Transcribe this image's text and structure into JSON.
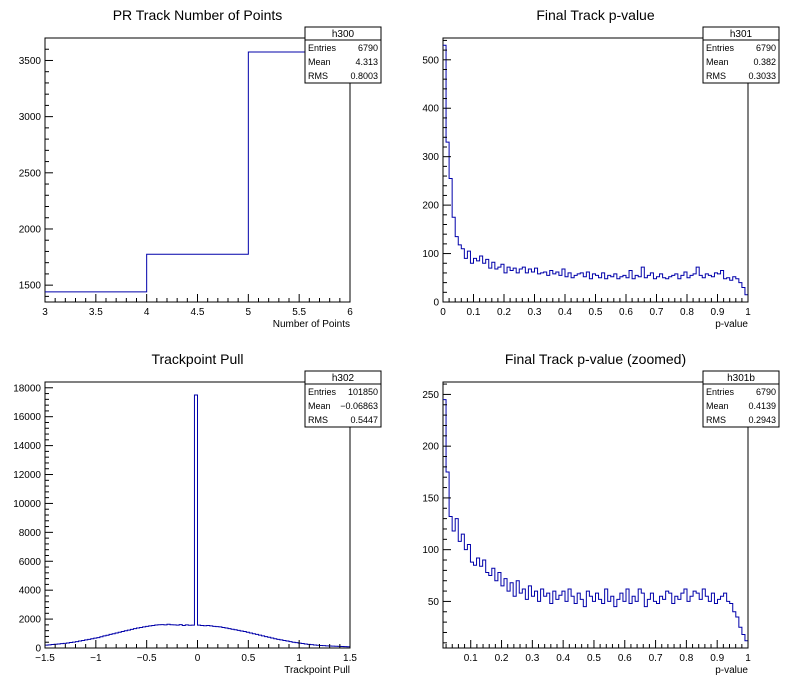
{
  "chart_data": [
    {
      "type": "bar",
      "title": "PR Track Number of Points",
      "xlabel": "Number of Points",
      "ylabel": "",
      "xlim": [
        3,
        6
      ],
      "ylim": [
        1350,
        3700
      ],
      "xticks": [
        3,
        3.5,
        4,
        4.5,
        5,
        5.5,
        6
      ],
      "yticks": [
        1500,
        2000,
        2500,
        3000,
        3500
      ],
      "bin_edges": [
        3,
        4,
        5,
        6
      ],
      "values": [
        1440,
        1775,
        3575
      ],
      "stats": {
        "name": "h300",
        "rows": [
          [
            "Entries",
            "6790"
          ],
          [
            "Mean",
            "4.313"
          ],
          [
            "RMS",
            "0.8003"
          ]
        ]
      }
    },
    {
      "type": "bar",
      "title": "Final Track p-value",
      "xlabel": "p-value",
      "ylabel": "",
      "xlim": [
        0,
        1
      ],
      "ylim": [
        0,
        545
      ],
      "xticks": [
        0,
        0.1,
        0.2,
        0.3,
        0.4,
        0.5,
        0.6,
        0.7,
        0.8,
        0.9,
        1
      ],
      "yticks": [
        0,
        100,
        200,
        300,
        400,
        500
      ],
      "bin_edges_range": [
        0,
        1
      ],
      "values": [
        530,
        330,
        255,
        175,
        135,
        118,
        110,
        90,
        105,
        80,
        90,
        85,
        95,
        80,
        88,
        70,
        82,
        68,
        72,
        78,
        60,
        72,
        65,
        70,
        60,
        68,
        72,
        60,
        68,
        62,
        70,
        58,
        60,
        62,
        55,
        65,
        58,
        62,
        55,
        68,
        52,
        60,
        50,
        55,
        58,
        60,
        52,
        62,
        48,
        58,
        55,
        50,
        60,
        48,
        55,
        52,
        58,
        48,
        52,
        55,
        50,
        65,
        48,
        55,
        52,
        72,
        50,
        55,
        60,
        48,
        52,
        58,
        50,
        48,
        52,
        55,
        58,
        48,
        55,
        62,
        50,
        55,
        58,
        72,
        55,
        50,
        58,
        55,
        52,
        60,
        58,
        65,
        48,
        50,
        45,
        52,
        48,
        40,
        30,
        15
      ],
      "stats": {
        "name": "h301",
        "rows": [
          [
            "Entries",
            "6790"
          ],
          [
            "Mean",
            "0.382"
          ],
          [
            "RMS",
            "0.3033"
          ]
        ]
      }
    },
    {
      "type": "bar",
      "title": "Trackpoint Pull",
      "xlabel": "Trackpoint Pull",
      "ylabel": "",
      "xlim": [
        -1.5,
        1.5
      ],
      "ylim": [
        0,
        18400
      ],
      "xticks": [
        -1.5,
        -1,
        -0.5,
        0,
        0.5,
        1,
        1.5
      ],
      "yticks": [
        0,
        2000,
        4000,
        6000,
        8000,
        10000,
        12000,
        14000,
        16000,
        18000
      ],
      "bin_edges_range": [
        -1.5,
        1.5
      ],
      "values": [
        200,
        220,
        240,
        260,
        280,
        300,
        320,
        350,
        380,
        410,
        440,
        480,
        520,
        560,
        600,
        640,
        680,
        720,
        780,
        840,
        880,
        940,
        990,
        1040,
        1090,
        1140,
        1190,
        1240,
        1290,
        1340,
        1380,
        1420,
        1460,
        1500,
        1530,
        1560,
        1590,
        1610,
        1620,
        1600,
        1640,
        1610,
        1600,
        1580,
        1620,
        1560,
        1600,
        1570,
        1580,
        17500,
        1580,
        1560,
        1540,
        1560,
        1530,
        1500,
        1480,
        1460,
        1420,
        1380,
        1340,
        1300,
        1260,
        1220,
        1180,
        1140,
        1090,
        1040,
        990,
        940,
        890,
        840,
        790,
        740,
        690,
        640,
        600,
        560,
        520,
        480,
        440,
        400,
        370,
        340,
        310,
        280,
        250,
        230,
        210,
        190,
        170,
        160,
        150,
        140,
        130,
        120,
        110,
        100,
        95,
        90
      ],
      "stats": {
        "name": "h302",
        "rows": [
          [
            "Entries",
            "101850"
          ],
          [
            "Mean",
            "−0.06863"
          ],
          [
            "RMS",
            "0.5447"
          ]
        ]
      }
    },
    {
      "type": "bar",
      "title": "Final Track p-value (zoomed)",
      "xlabel": "p-value",
      "ylabel": "",
      "xlim": [
        0.01,
        1
      ],
      "ylim": [
        5,
        262
      ],
      "xticks": [
        0.1,
        0.2,
        0.3,
        0.4,
        0.5,
        0.6,
        0.7,
        0.8,
        0.9,
        1
      ],
      "yticks": [
        50,
        100,
        150,
        200,
        250
      ],
      "bin_edges_range": [
        0.01,
        1
      ],
      "values": [
        245,
        175,
        132,
        118,
        130,
        108,
        115,
        100,
        105,
        88,
        85,
        92,
        84,
        90,
        78,
        75,
        82,
        70,
        78,
        65,
        72,
        60,
        68,
        55,
        70,
        58,
        62,
        52,
        65,
        55,
        60,
        50,
        62,
        55,
        58,
        48,
        60,
        52,
        56,
        60,
        50,
        62,
        55,
        48,
        58,
        52,
        45,
        60,
        55,
        50,
        58,
        52,
        48,
        62,
        50,
        55,
        45,
        52,
        58,
        50,
        62,
        48,
        55,
        50,
        62,
        58,
        45,
        52,
        58,
        50,
        48,
        55,
        52,
        60,
        58,
        48,
        55,
        52,
        58,
        62,
        50,
        55,
        60,
        58,
        52,
        62,
        55,
        50,
        58,
        48,
        52,
        55,
        58,
        50,
        48,
        40,
        35,
        25,
        18,
        12
      ],
      "stats": {
        "name": "h301b",
        "rows": [
          [
            "Entries",
            "6790"
          ],
          [
            "Mean",
            "0.4139"
          ],
          [
            "RMS",
            "0.2943"
          ]
        ]
      }
    }
  ]
}
